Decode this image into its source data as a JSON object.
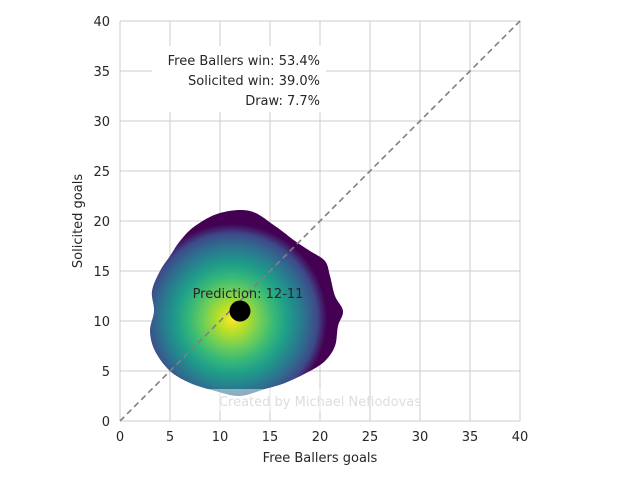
{
  "chart_data": {
    "type": "scatter",
    "xlabel": "Free Ballers goals",
    "ylabel": "Solicited goals",
    "xlim": [
      0,
      40
    ],
    "ylim": [
      0,
      40
    ],
    "xticks": [
      0,
      5,
      10,
      15,
      20,
      25,
      30,
      35,
      40
    ],
    "yticks": [
      0,
      5,
      10,
      15,
      20,
      25,
      30,
      35,
      40
    ],
    "grid": true,
    "reference_line": {
      "from": [
        0,
        0
      ],
      "to": [
        40,
        40
      ],
      "style": "dashed",
      "color": "#808080"
    },
    "density": {
      "center": [
        11.2,
        10.2
      ],
      "colormap": "viridis",
      "outline": [
        [
          10,
          20.8
        ],
        [
          13,
          21
        ],
        [
          15.5,
          19.5
        ],
        [
          17.5,
          18
        ],
        [
          19,
          17
        ],
        [
          20.5,
          16
        ],
        [
          21,
          14.5
        ],
        [
          21.5,
          12.5
        ],
        [
          22.3,
          11
        ],
        [
          21.8,
          9.5
        ],
        [
          21.5,
          7.5
        ],
        [
          20.5,
          6
        ],
        [
          19,
          5
        ],
        [
          16.5,
          3.8
        ],
        [
          14.5,
          3.2
        ],
        [
          12,
          2.5
        ],
        [
          9.5,
          3
        ],
        [
          7,
          3.8
        ],
        [
          5,
          5
        ],
        [
          3.5,
          7
        ],
        [
          3,
          9
        ],
        [
          3.4,
          11
        ],
        [
          3.2,
          13
        ],
        [
          4,
          15
        ],
        [
          5,
          16.5
        ],
        [
          6,
          18
        ],
        [
          7.5,
          19.5
        ]
      ]
    },
    "points": [
      {
        "label": "Prediction: 12-11",
        "x": 12,
        "y": 11,
        "color": "#000000"
      }
    ],
    "stats_box": [
      "Free Ballers win: 53.4%",
      "Solicited win: 39.0%",
      "Draw: 7.7%"
    ],
    "watermark": "Created by Michael Nefiodovas"
  }
}
